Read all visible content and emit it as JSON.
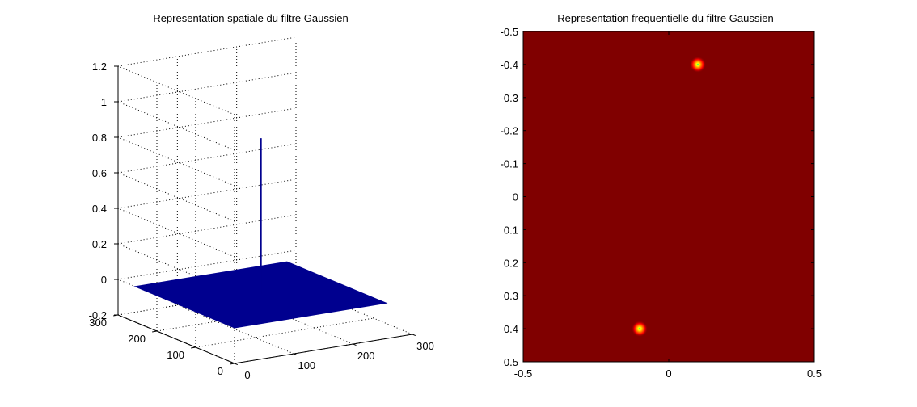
{
  "chart_data": [
    {
      "type": "surface3d",
      "title": "Representation spatiale du filtre Gaussien",
      "xlabel": "",
      "ylabel": "",
      "zlabel": "",
      "x_ticks": [
        "0",
        "100",
        "200",
        "300"
      ],
      "y_ticks": [
        "0",
        "100",
        "200",
        "300"
      ],
      "z_ticks": [
        "-0.2",
        "0",
        "0.2",
        "0.4",
        "0.6",
        "0.8",
        "1",
        "1.2"
      ],
      "xlim": [
        0,
        300
      ],
      "ylim": [
        0,
        300
      ],
      "zlim": [
        -0.2,
        1.2
      ],
      "surface_color": "#00008f",
      "surface": {
        "x": [
          0,
          256
        ],
        "y": [
          0,
          256
        ],
        "z_base": 0
      },
      "spike": {
        "x": 129,
        "y": 129,
        "z": 0.88
      },
      "grid": true
    },
    {
      "type": "heatmap",
      "title": "Representation frequentielle du filtre Gaussien",
      "xlabel": "",
      "ylabel": "",
      "x_ticks": [
        "-0.5",
        "0",
        "0.5"
      ],
      "y_ticks": [
        "-0.5",
        "-0.4",
        "-0.3",
        "-0.2",
        "-0.1",
        "0",
        "0.1",
        "0.2",
        "0.3",
        "0.4",
        "0.5"
      ],
      "xlim": [
        -0.5,
        0.5
      ],
      "ylim": [
        -0.5,
        0.5
      ],
      "background_color": "#800000",
      "peaks": [
        {
          "x": 0.1,
          "y": -0.4
        },
        {
          "x": -0.1,
          "y": 0.4
        }
      ],
      "grid": false
    }
  ]
}
